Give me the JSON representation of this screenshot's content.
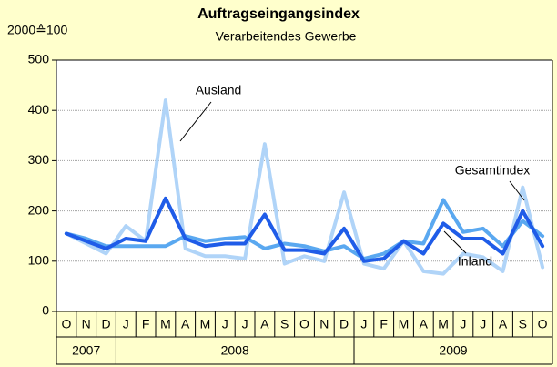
{
  "chart_data": {
    "type": "line",
    "title": "Auftragseingangsindex",
    "subtitle": "Verarbeitendes Gewerbe",
    "y_label": "2000≙100",
    "categories": [
      "O",
      "N",
      "D",
      "J",
      "F",
      "M",
      "A",
      "M",
      "J",
      "J",
      "A",
      "S",
      "O",
      "N",
      "D",
      "J",
      "F",
      "M",
      "A",
      "M",
      "J",
      "J",
      "A",
      "S",
      "O"
    ],
    "category_groups": [
      {
        "label": "2007",
        "count": 3
      },
      {
        "label": "2008",
        "count": 12
      },
      {
        "label": "2009",
        "count": 10
      }
    ],
    "ylim": [
      0,
      500
    ],
    "yticks": [
      0,
      100,
      200,
      300,
      400,
      500
    ],
    "grid": true,
    "series": [
      {
        "name": "Ausland",
        "color": "#b0d4f8",
        "values": [
          155,
          135,
          115,
          170,
          140,
          420,
          125,
          110,
          110,
          105,
          333,
          95,
          110,
          100,
          237,
          95,
          85,
          140,
          80,
          75,
          115,
          108,
          80,
          247,
          88
        ]
      },
      {
        "name": "Inland",
        "color": "#5aa8f0",
        "values": [
          155,
          145,
          130,
          130,
          130,
          130,
          150,
          140,
          145,
          148,
          125,
          135,
          130,
          120,
          130,
          105,
          115,
          140,
          135,
          222,
          158,
          165,
          130,
          180,
          150
        ]
      },
      {
        "name": "Gesamtindex",
        "color": "#1f5ce8",
        "values": [
          155,
          140,
          125,
          145,
          140,
          225,
          145,
          130,
          135,
          135,
          193,
          122,
          122,
          115,
          165,
          100,
          105,
          140,
          115,
          175,
          145,
          145,
          115,
          200,
          130
        ]
      }
    ]
  }
}
